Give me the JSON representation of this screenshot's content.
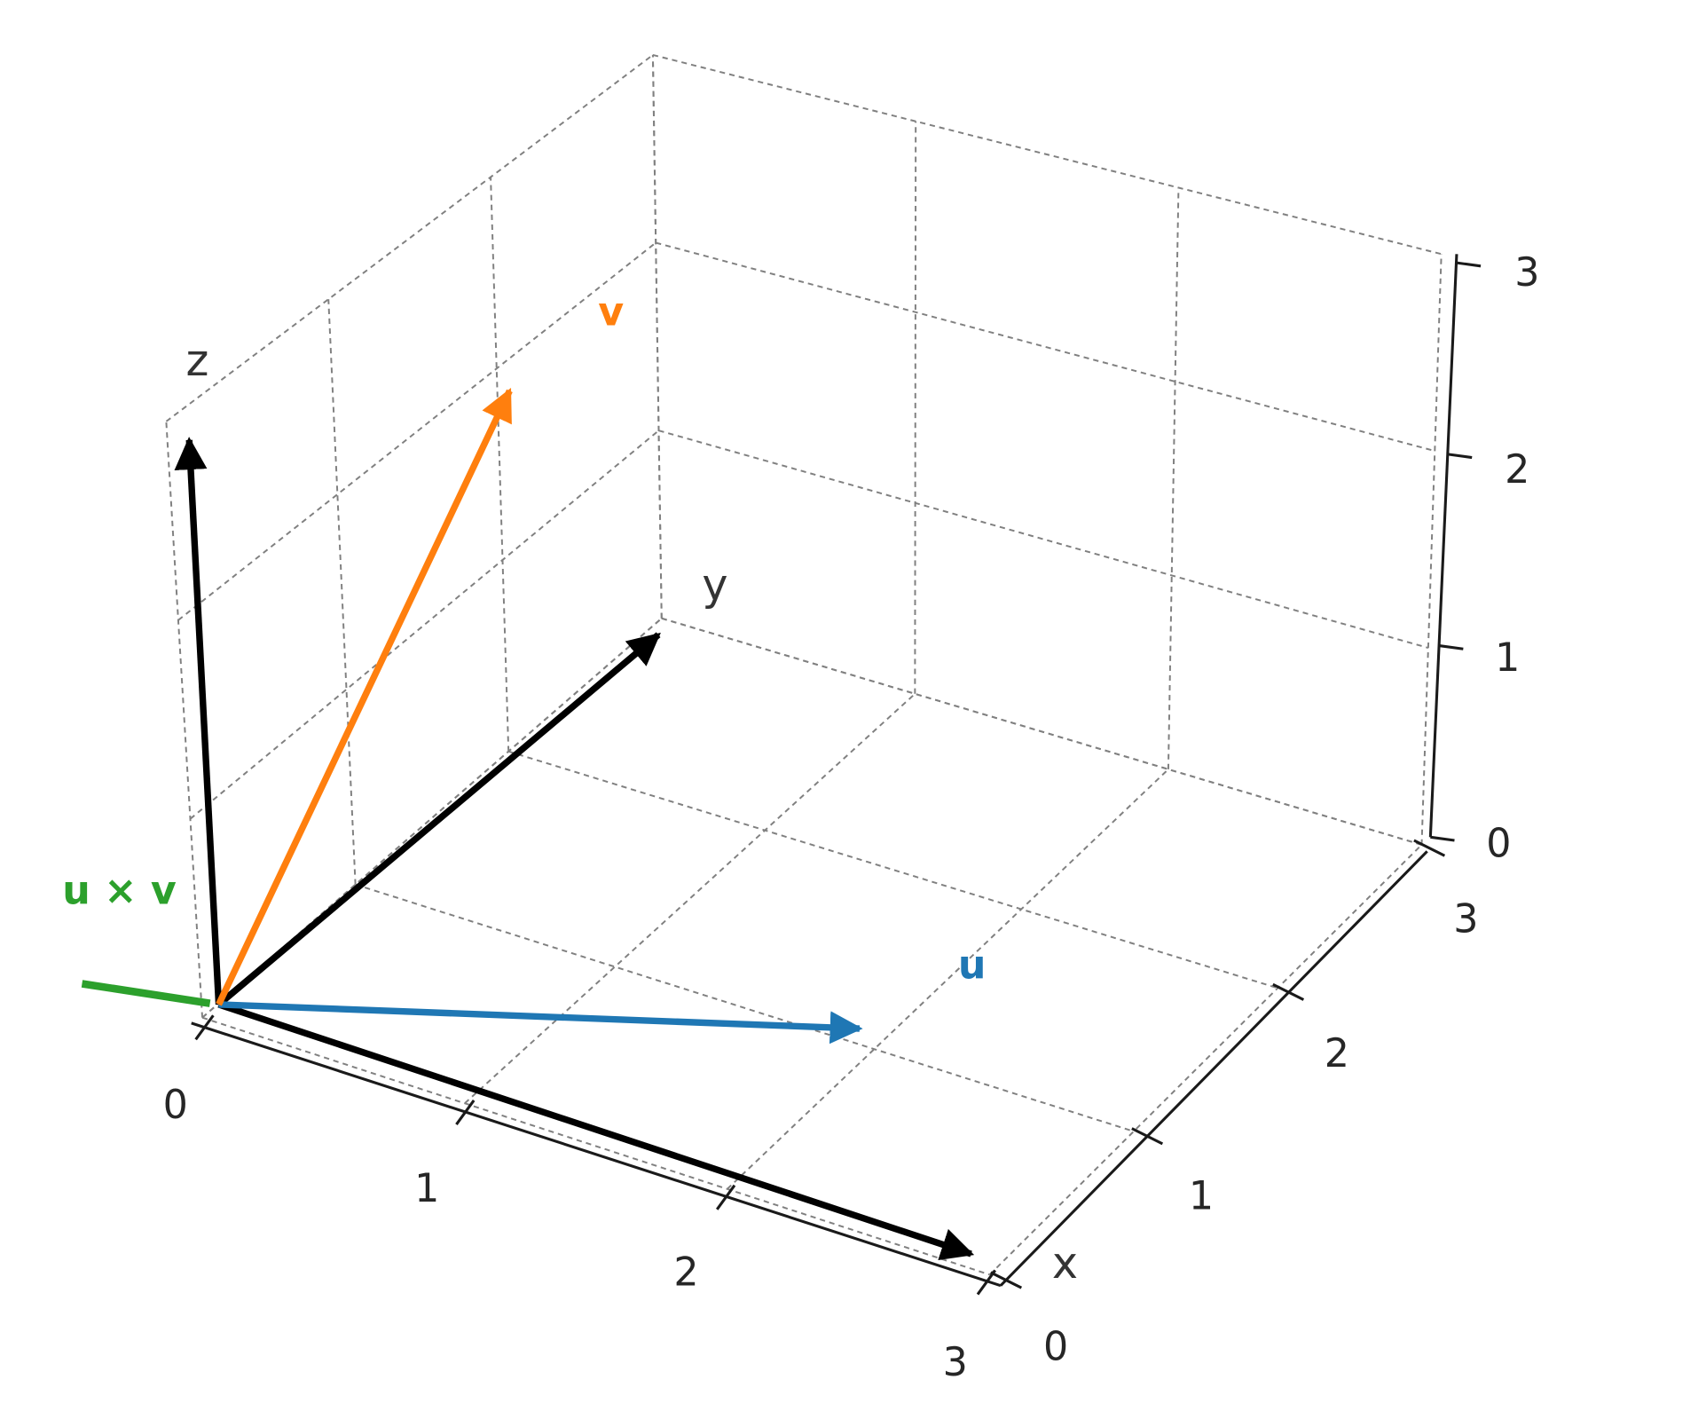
{
  "chart_data": {
    "type": "3d-quiver",
    "xlabel": "x",
    "ylabel": "y",
    "zlabel": "z",
    "xlim": [
      0,
      3
    ],
    "ylim": [
      0,
      3
    ],
    "zlim": [
      0,
      3
    ],
    "xticks": [
      "0",
      "1",
      "2",
      "3"
    ],
    "yticks": [
      "0",
      "1",
      "2",
      "3"
    ],
    "zticks": [
      "0",
      "1",
      "2",
      "3"
    ],
    "grid": true,
    "axis_arrows": [
      {
        "axis": "x",
        "vector": [
          3,
          0,
          0
        ],
        "color": "#000000"
      },
      {
        "axis": "y",
        "vector": [
          0,
          3,
          0
        ],
        "color": "#000000"
      },
      {
        "axis": "z",
        "vector": [
          0,
          0,
          3
        ],
        "color": "#000000"
      }
    ],
    "vectors": [
      {
        "name": "u",
        "label": "u",
        "vector": [
          2,
          1,
          0
        ],
        "color": "#1f77b4"
      },
      {
        "name": "v",
        "label": "v",
        "vector": [
          1,
          1,
          3
        ],
        "color": "#ff7f0e"
      },
      {
        "name": "cross",
        "label": "u × v",
        "color": "#2ca02c"
      }
    ]
  }
}
